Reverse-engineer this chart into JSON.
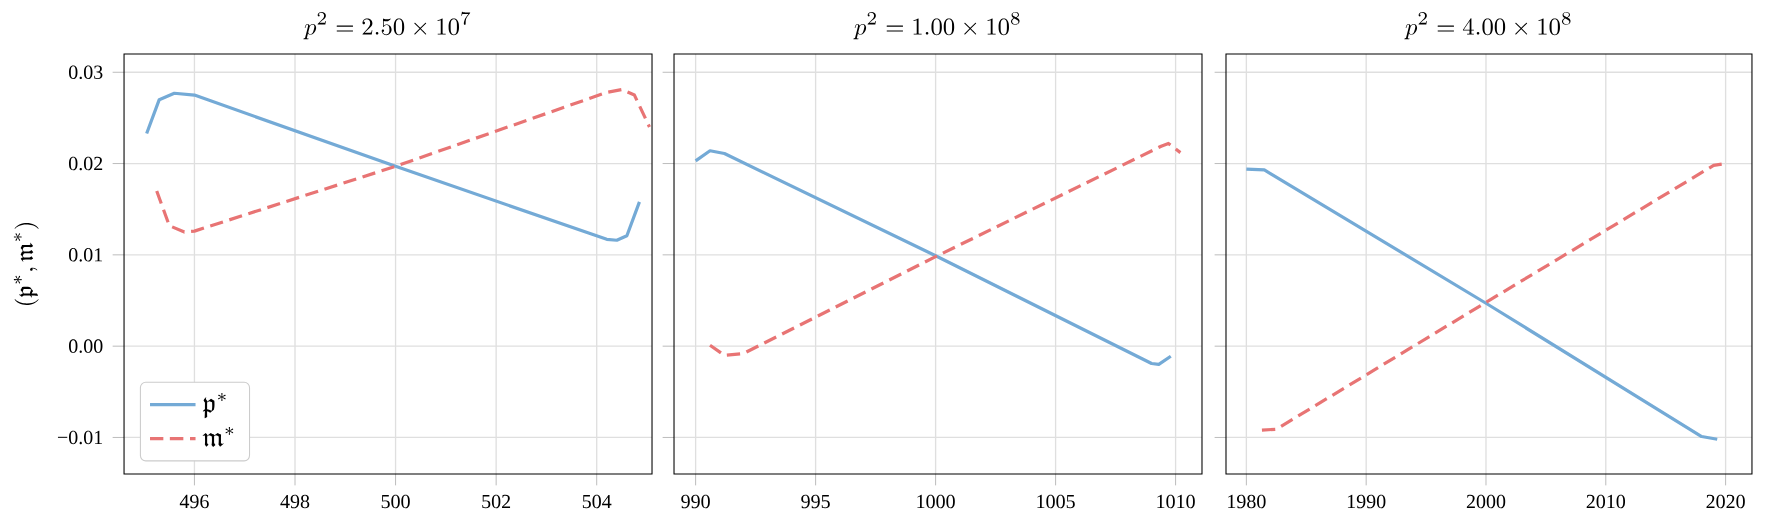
{
  "chart_data": [
    {
      "type": "line",
      "title": "p^2 = 2.50 \\times 10^7",
      "ylabel": "(\\mathfrak{p}^*, \\mathfrak{m}^*)",
      "xlim": [
        494.6,
        505.1
      ],
      "ylim": [
        -0.014,
        0.032
      ],
      "xticks": [
        496,
        498,
        500,
        502,
        504
      ],
      "yticks": [
        {
          "value": -0.01,
          "label": "−0.01"
        },
        {
          "value": 0,
          "label": "0.00"
        },
        {
          "value": 0.01,
          "label": "0.01"
        },
        {
          "value": 0.02,
          "label": "0.02"
        },
        {
          "value": 0.03,
          "label": "0.03"
        }
      ],
      "grid": true,
      "legend": "lower left",
      "series": [
        {
          "name": "\\mathfrak{p}^*",
          "color": "#74aad6",
          "line_style": "solid",
          "x": [
            495.05,
            495.3,
            495.6,
            496,
            500,
            504.2,
            504.4,
            504.6,
            504.85
          ],
          "values": [
            0.0233,
            0.027,
            0.0277,
            0.0275,
            0.0197,
            0.0117,
            0.0116,
            0.0121,
            0.0158
          ]
        },
        {
          "name": "\\mathfrak{m}^*",
          "color": "#e87474",
          "line_style": "dashed",
          "x": [
            495.25,
            495.5,
            495.8,
            496,
            500,
            504.2,
            504.5,
            504.75,
            505.05
          ],
          "values": [
            0.017,
            0.0132,
            0.0125,
            0.0126,
            0.0197,
            0.0278,
            0.0281,
            0.0275,
            0.024
          ]
        }
      ]
    },
    {
      "type": "line",
      "title": "p^2 = 1.00 \\times 10^8",
      "xlim": [
        989.1,
        1011.1
      ],
      "ylim": [
        -0.014,
        0.032
      ],
      "xticks": [
        990,
        995,
        1000,
        1005,
        1010
      ],
      "yticks": [
        -0.01,
        0,
        0.01,
        0.02,
        0.03
      ],
      "grid": true,
      "tick_labels": "x",
      "series": [
        {
          "color": "#74aad6",
          "line_style": "solid",
          "x": [
            990,
            990.6,
            991.2,
            1000,
            1009,
            1009.3,
            1009.8
          ],
          "values": [
            0.0203,
            0.0214,
            0.0211,
            0.0099,
            -0.0019,
            -0.002,
            -0.0011
          ]
        },
        {
          "color": "#e87474",
          "line_style": "dashed",
          "x": [
            990.6,
            991.2,
            992,
            1000,
            1009.4,
            1009.7,
            1010.2
          ],
          "values": [
            0.0001,
            -0.001,
            -0.0008,
            0.0098,
            0.0219,
            0.0222,
            0.0212
          ]
        }
      ]
    },
    {
      "type": "line",
      "title": "p^2 = 4.00 \\times 10^8",
      "xlim": [
        1978.3,
        2022.2
      ],
      "ylim": [
        -0.014,
        0.032
      ],
      "xticks": [
        1980,
        1990,
        2000,
        2010,
        2020
      ],
      "yticks": [
        -0.01,
        0,
        0.01,
        0.02,
        0.03
      ],
      "grid": true,
      "tick_labels": "x",
      "series": [
        {
          "color": "#74aad6",
          "line_style": "solid",
          "x": [
            1980,
            1981.5,
            2000,
            2018,
            2019.3
          ],
          "values": [
            0.0194,
            0.0193,
            0.0047,
            -0.0099,
            -0.0102
          ]
        },
        {
          "color": "#e87474",
          "line_style": "dashed",
          "x": [
            1981.3,
            1982.5,
            2000,
            2019,
            2020
          ],
          "values": [
            -0.0092,
            -0.0091,
            0.0048,
            0.0198,
            0.02
          ]
        }
      ]
    }
  ]
}
